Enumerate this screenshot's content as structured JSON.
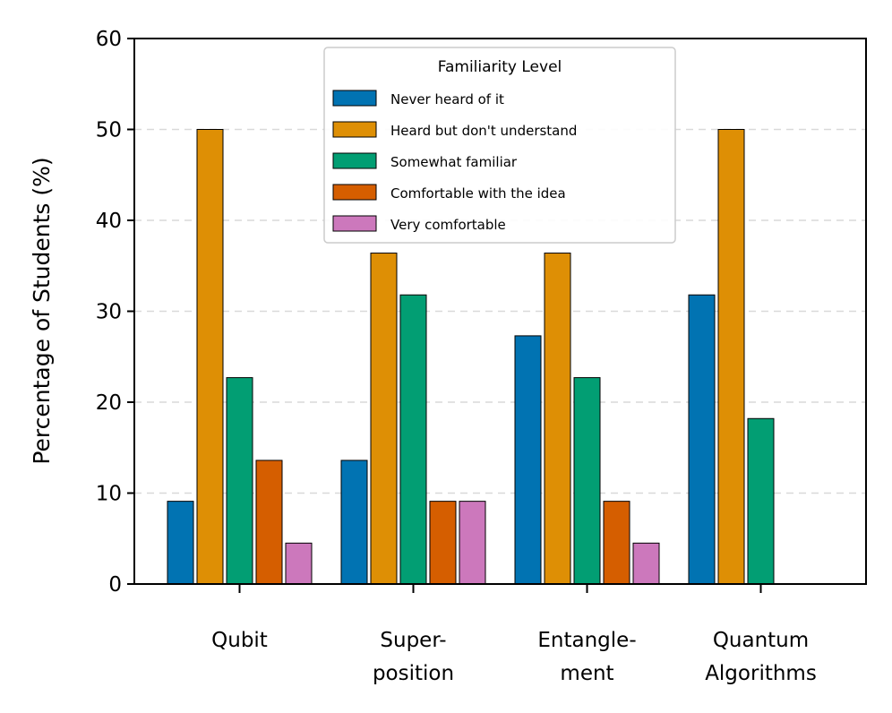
{
  "chart_data": {
    "type": "bar",
    "title": "",
    "xlabel": "",
    "ylabel": "Percentage of Students (%)",
    "ylim": [
      0,
      60
    ],
    "yticks": [
      0,
      10,
      20,
      30,
      40,
      50,
      60
    ],
    "grid": "y-dashed",
    "categories": [
      [
        "Qubit"
      ],
      [
        "Super-",
        "position"
      ],
      [
        "Entangle-",
        "ment"
      ],
      [
        "Quantum",
        "Algorithms"
      ]
    ],
    "legend": {
      "title": "Familiarity Level",
      "placement": "top-center"
    },
    "series": [
      {
        "name": "Never heard of it",
        "color": "#0173b2",
        "values": [
          9.1,
          13.6,
          27.3,
          31.8
        ]
      },
      {
        "name": "Heard but don't understand",
        "color": "#de8f05",
        "values": [
          50.0,
          36.4,
          36.4,
          50.0
        ]
      },
      {
        "name": "Somewhat familiar",
        "color": "#029e73",
        "values": [
          22.7,
          31.8,
          22.7,
          18.2
        ]
      },
      {
        "name": "Comfortable with the idea",
        "color": "#d55e00",
        "values": [
          13.6,
          9.1,
          9.1,
          0
        ]
      },
      {
        "name": "Very comfortable",
        "color": "#cc78bc",
        "values": [
          4.5,
          9.1,
          4.5,
          0
        ]
      }
    ]
  }
}
